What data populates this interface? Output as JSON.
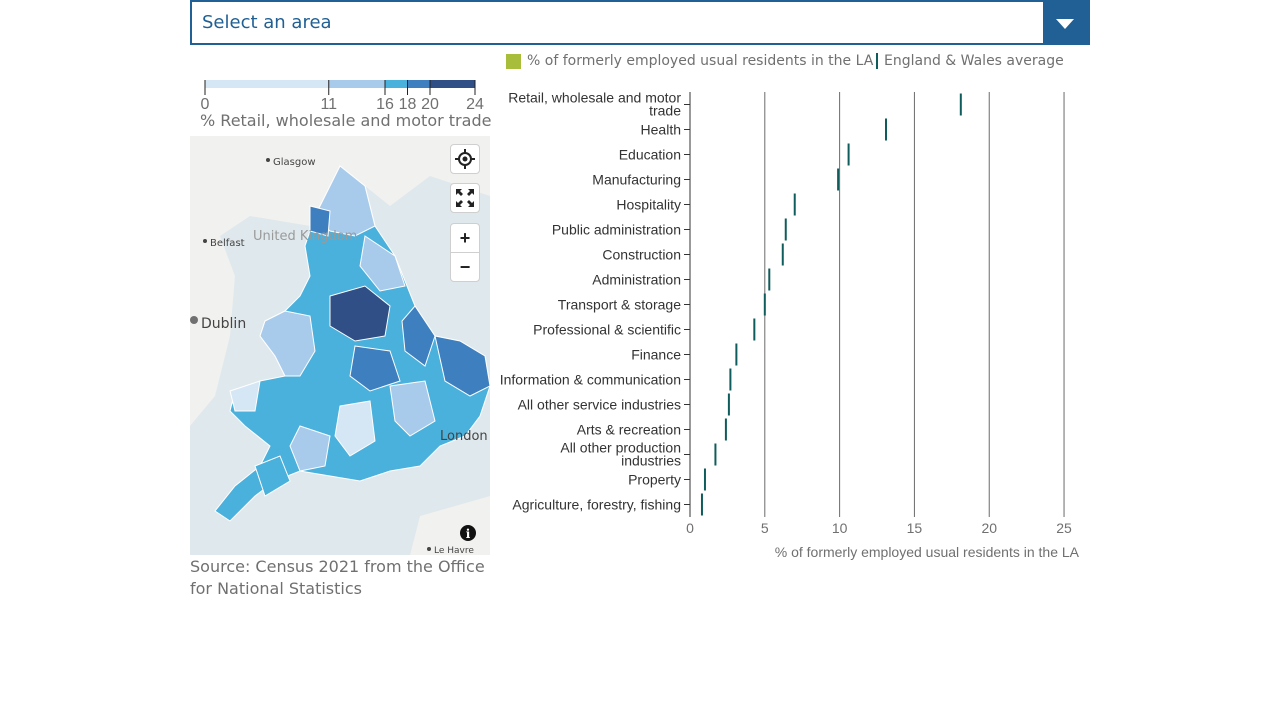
{
  "area_select": {
    "placeholder": "Select an area"
  },
  "legend": {
    "la_label": "% of formerly employed usual residents in the LA",
    "avg_label": "England & Wales average",
    "la_color": "#a8bd3a",
    "avg_color": "#0f5c5c"
  },
  "map": {
    "scale_breaks": [
      0,
      11,
      16,
      18,
      20,
      24
    ],
    "scale_tick_labels": [
      "0",
      "11",
      "16",
      "18",
      "20",
      "24"
    ],
    "scale_colors": [
      "#d5e6f5",
      "#a8cbec",
      "#4ab0dc",
      "#3e7fbf",
      "#2f4f86"
    ],
    "scale_label": "% Retail, wholesale and motor trade",
    "place_labels": {
      "glasgow": "Glasgow",
      "united_kingdom": "United Kingdom",
      "belfast": "Belfast",
      "dublin": "Dublin",
      "london": "London",
      "le_havre": "Le Havre"
    },
    "controls": {
      "locate_icon": "crosshair-icon",
      "fullscreen_icon": "fullscreen-icon",
      "zoom_in": "+",
      "zoom_out": "−",
      "info_icon": "info-icon"
    }
  },
  "chart_data": {
    "type": "bar",
    "categories": [
      "Retail, wholesale and motor trade",
      "Health",
      "Education",
      "Manufacturing",
      "Hospitality",
      "Public administration",
      "Construction",
      "Administration",
      "Transport & storage",
      "Professional & scientific",
      "Finance",
      "Information & communication",
      "All other service industries",
      "Arts & recreation",
      "All other production industries",
      "Property",
      "Agriculture, forestry, fishing"
    ],
    "series": [
      {
        "name": "England & Wales average",
        "values": [
          18.1,
          13.1,
          10.6,
          9.9,
          7.0,
          6.4,
          6.2,
          5.3,
          5.0,
          4.3,
          3.1,
          2.7,
          2.6,
          2.4,
          1.7,
          1.0,
          0.8
        ]
      }
    ],
    "xlabel": "% of formerly employed usual residents in the LA",
    "ylabel": "",
    "xlim": [
      0,
      26
    ],
    "xticks": [
      0,
      5,
      10,
      15,
      20,
      25
    ],
    "grid": true,
    "legend_position": "top"
  },
  "source": {
    "text": "Source: Census 2021 from the Office for National Statistics"
  }
}
